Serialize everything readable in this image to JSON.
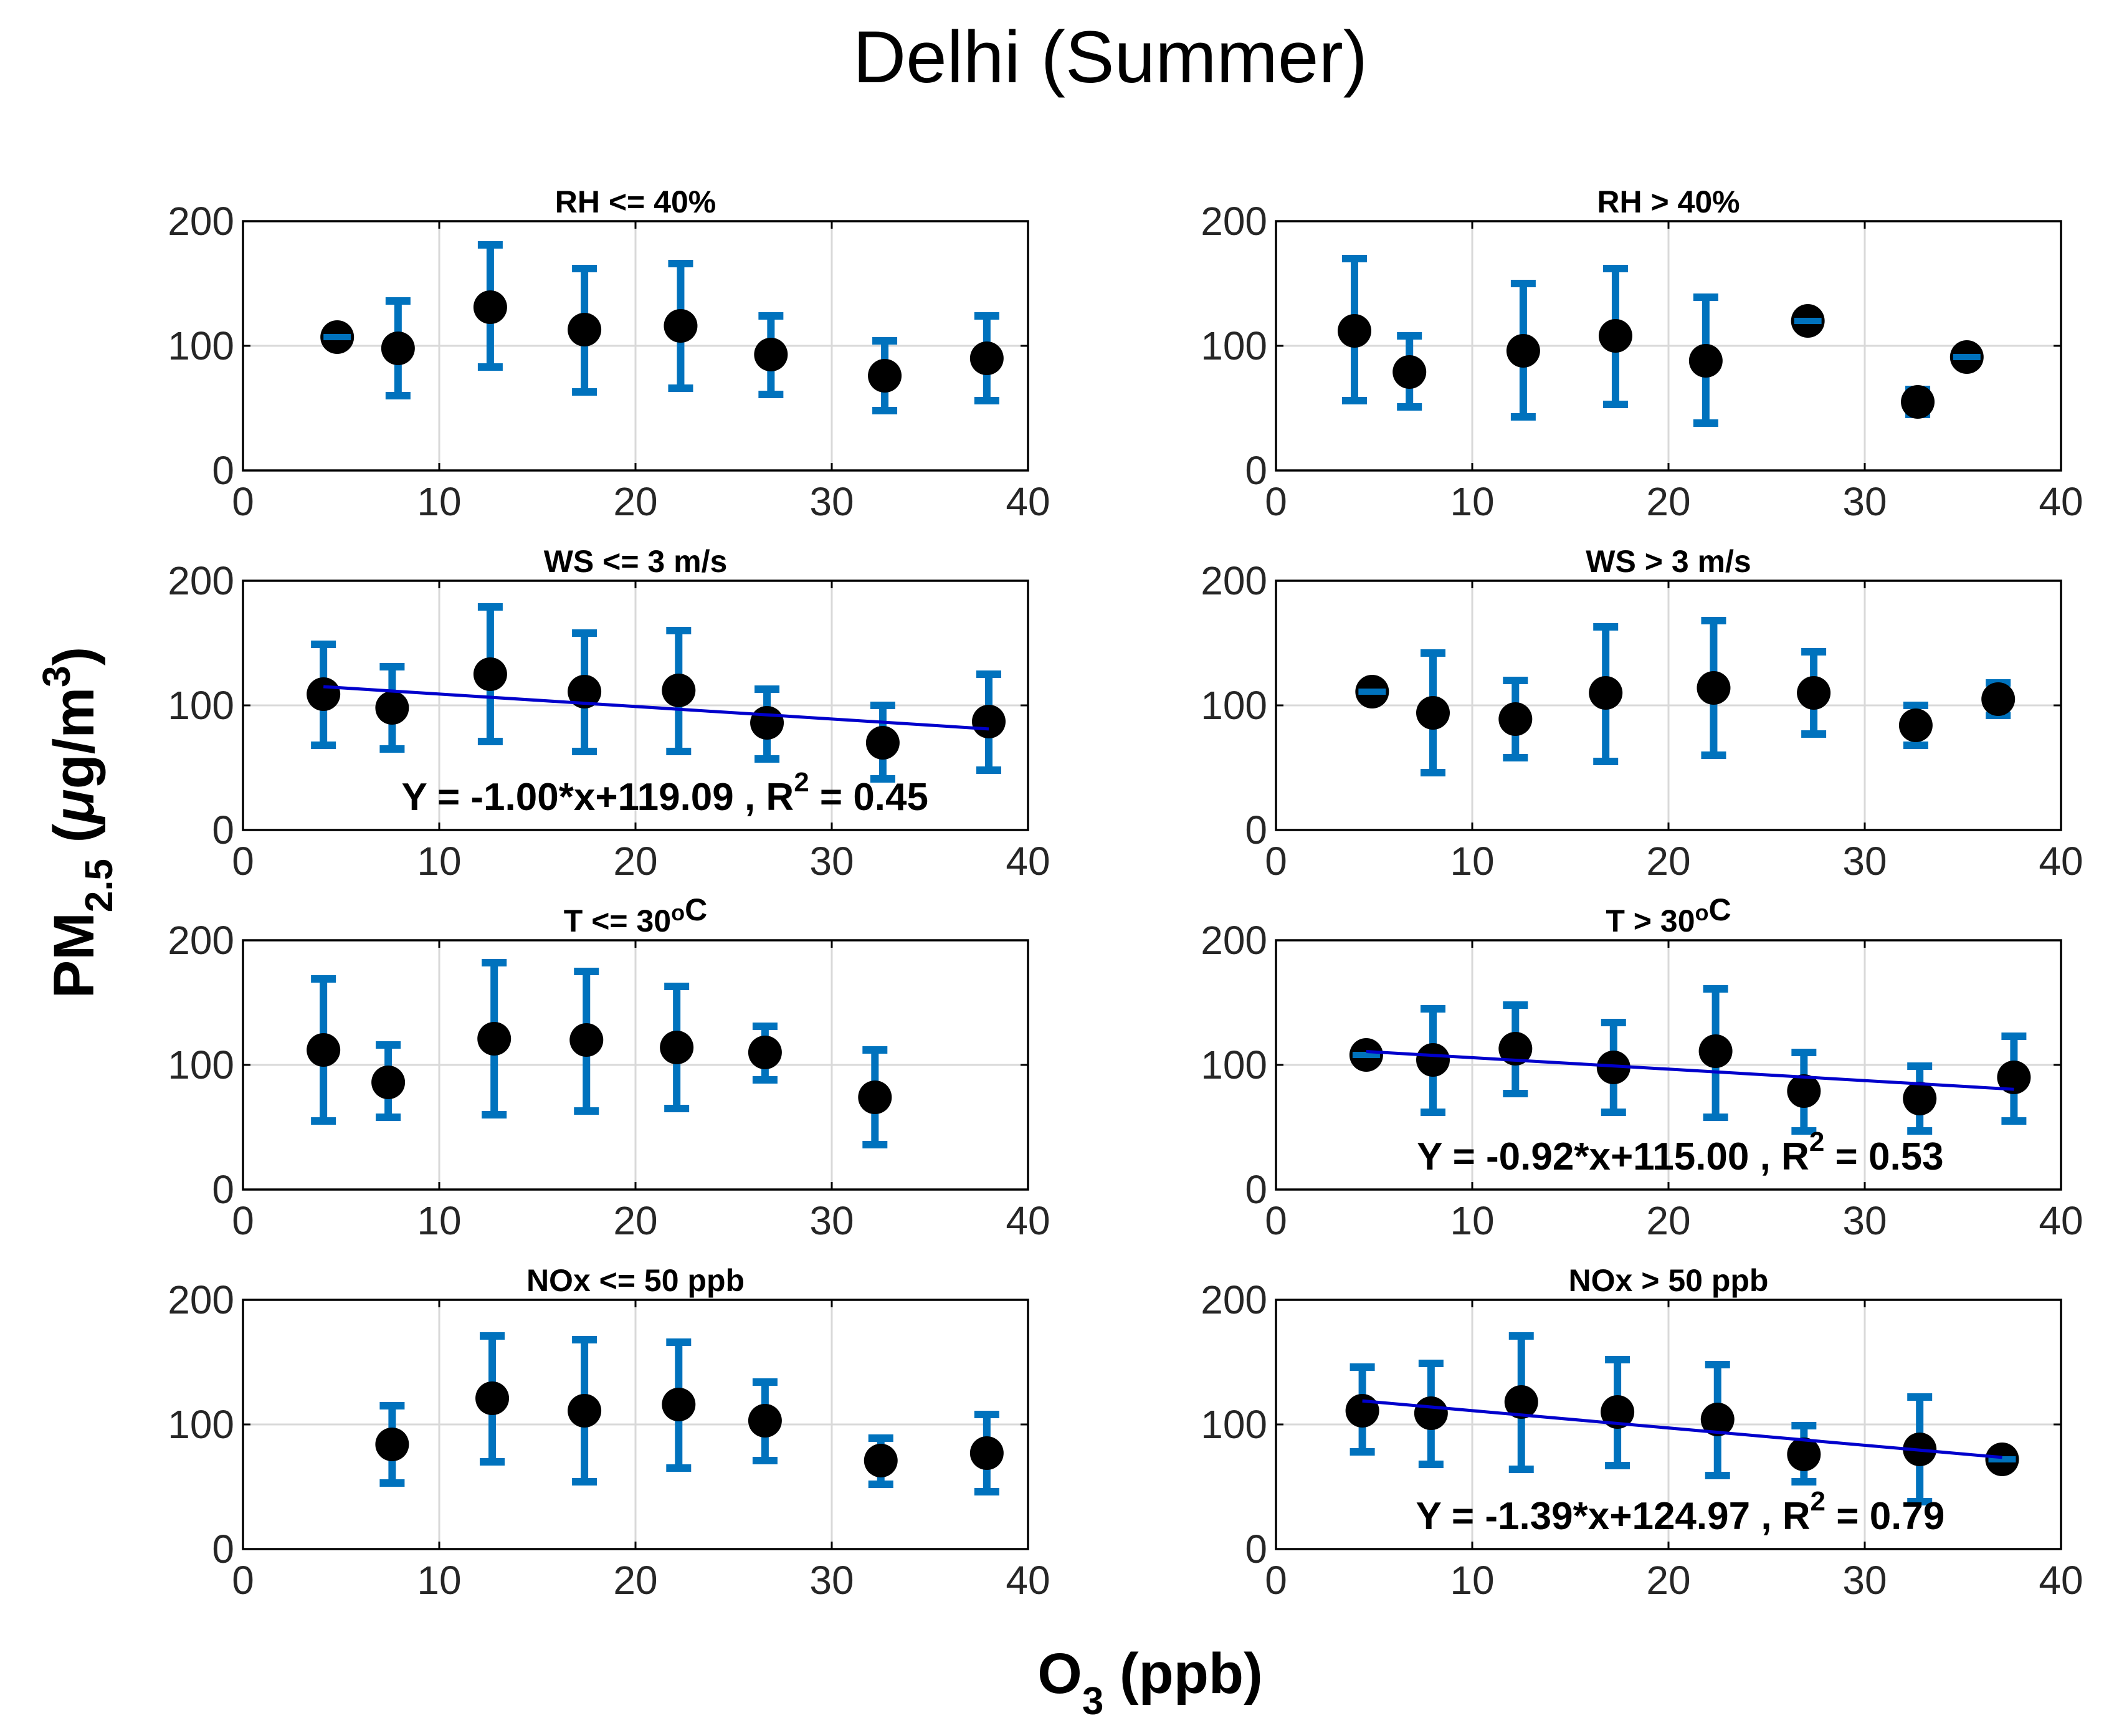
{
  "figure": {
    "title": "Delhi (Summer)",
    "xlabel": "O",
    "xlabel_sub": "3",
    "xlabel_rest": " (ppb)",
    "ylabel": "PM",
    "ylabel_sub": "2.5",
    "ylabel_mid": " (",
    "ylabel_mu": "μ",
    "ylabel_unit": "g/m",
    "ylabel_sup": "3",
    "ylabel_end": ")"
  },
  "colors": {
    "errorbar": "#0072BD",
    "marker": "#000000",
    "fit_line": "#0000CC",
    "grid": "#d9d9d9",
    "axes": "#000000"
  },
  "chart_data": [
    {
      "type": "scatter",
      "title": "RH <= 40%",
      "title_parts": [
        {
          "t": "RH <= 40%"
        }
      ],
      "xlim": [
        0,
        40
      ],
      "ylim": [
        0,
        200
      ],
      "xticks": [
        0,
        10,
        20,
        30,
        40
      ],
      "yticks": [
        0,
        100,
        200
      ],
      "grid": true,
      "points": [
        {
          "x": 4.8,
          "y": 107,
          "lo": 107,
          "hi": 107
        },
        {
          "x": 7.9,
          "y": 98,
          "lo": 60,
          "hi": 136
        },
        {
          "x": 12.6,
          "y": 131,
          "lo": 83,
          "hi": 181
        },
        {
          "x": 17.4,
          "y": 113,
          "lo": 63,
          "hi": 162
        },
        {
          "x": 22.3,
          "y": 116,
          "lo": 66,
          "hi": 166
        },
        {
          "x": 26.9,
          "y": 93,
          "lo": 61,
          "hi": 124
        },
        {
          "x": 32.7,
          "y": 76,
          "lo": 48,
          "hi": 104
        },
        {
          "x": 37.9,
          "y": 90,
          "lo": 56,
          "hi": 124
        }
      ]
    },
    {
      "type": "scatter",
      "title": "RH > 40%",
      "title_parts": [
        {
          "t": "RH > 40%"
        }
      ],
      "xlim": [
        0,
        40
      ],
      "ylim": [
        0,
        200
      ],
      "xticks": [
        0,
        10,
        20,
        30,
        40
      ],
      "yticks": [
        0,
        100,
        200
      ],
      "grid": true,
      "points": [
        {
          "x": 4.0,
          "y": 112,
          "lo": 56,
          "hi": 170
        },
        {
          "x": 6.8,
          "y": 79,
          "lo": 51,
          "hi": 108
        },
        {
          "x": 12.6,
          "y": 96,
          "lo": 43,
          "hi": 150
        },
        {
          "x": 17.3,
          "y": 108,
          "lo": 53,
          "hi": 162
        },
        {
          "x": 21.9,
          "y": 88,
          "lo": 38,
          "hi": 139
        },
        {
          "x": 27.1,
          "y": 120,
          "lo": 120,
          "hi": 120
        },
        {
          "x": 32.7,
          "y": 55,
          "lo": 45,
          "hi": 65
        },
        {
          "x": 35.2,
          "y": 91,
          "lo": 91,
          "hi": 91
        }
      ]
    },
    {
      "type": "scatter",
      "title": "WS <= 3 m/s",
      "title_parts": [
        {
          "t": "WS <= 3 m/s"
        }
      ],
      "xlim": [
        0,
        40
      ],
      "ylim": [
        0,
        200
      ],
      "xticks": [
        0,
        10,
        20,
        30,
        40
      ],
      "yticks": [
        0,
        100,
        200
      ],
      "grid": true,
      "points": [
        {
          "x": 4.1,
          "y": 109,
          "lo": 68,
          "hi": 149
        },
        {
          "x": 7.6,
          "y": 98,
          "lo": 65,
          "hi": 131
        },
        {
          "x": 12.6,
          "y": 125,
          "lo": 71,
          "hi": 179
        },
        {
          "x": 17.4,
          "y": 111,
          "lo": 63,
          "hi": 158
        },
        {
          "x": 22.2,
          "y": 112,
          "lo": 63,
          "hi": 160
        },
        {
          "x": 26.7,
          "y": 86,
          "lo": 57,
          "hi": 113
        },
        {
          "x": 32.6,
          "y": 70,
          "lo": 41,
          "hi": 100
        },
        {
          "x": 38.0,
          "y": 87,
          "lo": 48,
          "hi": 125
        }
      ],
      "fit": {
        "x0": 4.1,
        "x1": 38.0,
        "slope": -1.0,
        "intercept": 119.09
      },
      "annotation": {
        "eq": "Y = -1.00*x+119.09 , R",
        "sup": "2",
        "rest": " = 0.45",
        "x": 21.5,
        "y": 16
      }
    },
    {
      "type": "scatter",
      "title": "WS > 3 m/s",
      "title_parts": [
        {
          "t": "WS > 3 m/s"
        }
      ],
      "xlim": [
        0,
        40
      ],
      "ylim": [
        0,
        200
      ],
      "xticks": [
        0,
        10,
        20,
        30,
        40
      ],
      "yticks": [
        0,
        100,
        200
      ],
      "grid": true,
      "points": [
        {
          "x": 4.9,
          "y": 111,
          "lo": 111,
          "hi": 111
        },
        {
          "x": 8.0,
          "y": 94,
          "lo": 46,
          "hi": 142
        },
        {
          "x": 12.2,
          "y": 89,
          "lo": 58,
          "hi": 120
        },
        {
          "x": 16.8,
          "y": 110,
          "lo": 55,
          "hi": 163
        },
        {
          "x": 22.3,
          "y": 114,
          "lo": 60,
          "hi": 168
        },
        {
          "x": 27.4,
          "y": 110,
          "lo": 77,
          "hi": 143
        },
        {
          "x": 32.6,
          "y": 84,
          "lo": 68,
          "hi": 100
        },
        {
          "x": 36.8,
          "y": 105,
          "lo": 92,
          "hi": 118
        }
      ]
    },
    {
      "type": "scatter",
      "title": "T <= 30",
      "title_parts": [
        {
          "t": "T <= 30"
        },
        {
          "t": "o",
          "sup": true
        },
        {
          "t": "C"
        }
      ],
      "xlim": [
        0,
        40
      ],
      "ylim": [
        0,
        200
      ],
      "xticks": [
        0,
        10,
        20,
        30,
        40
      ],
      "yticks": [
        0,
        100,
        200
      ],
      "grid": true,
      "points": [
        {
          "x": 4.1,
          "y": 112,
          "lo": 55,
          "hi": 169
        },
        {
          "x": 7.4,
          "y": 86,
          "lo": 58,
          "hi": 116
        },
        {
          "x": 12.8,
          "y": 121,
          "lo": 60,
          "hi": 182
        },
        {
          "x": 17.5,
          "y": 120,
          "lo": 63,
          "hi": 175
        },
        {
          "x": 22.1,
          "y": 114,
          "lo": 65,
          "hi": 163
        },
        {
          "x": 26.6,
          "y": 110,
          "lo": 88,
          "hi": 131
        },
        {
          "x": 32.2,
          "y": 74,
          "lo": 36,
          "hi": 112
        }
      ]
    },
    {
      "type": "scatter",
      "title": "T > 30",
      "title_parts": [
        {
          "t": "T > 30"
        },
        {
          "t": "o",
          "sup": true
        },
        {
          "t": "C"
        }
      ],
      "xlim": [
        0,
        40
      ],
      "ylim": [
        0,
        200
      ],
      "xticks": [
        0,
        10,
        20,
        30,
        40
      ],
      "yticks": [
        0,
        100,
        200
      ],
      "grid": true,
      "points": [
        {
          "x": 4.6,
          "y": 108,
          "lo": 108,
          "hi": 108
        },
        {
          "x": 8.0,
          "y": 104,
          "lo": 62,
          "hi": 145
        },
        {
          "x": 12.2,
          "y": 113,
          "lo": 77,
          "hi": 148
        },
        {
          "x": 17.2,
          "y": 98,
          "lo": 62,
          "hi": 134
        },
        {
          "x": 22.4,
          "y": 111,
          "lo": 58,
          "hi": 161
        },
        {
          "x": 26.9,
          "y": 79,
          "lo": 47,
          "hi": 110
        },
        {
          "x": 32.8,
          "y": 73,
          "lo": 47,
          "hi": 99
        },
        {
          "x": 37.6,
          "y": 90,
          "lo": 55,
          "hi": 123
        }
      ],
      "fit": {
        "x0": 4.6,
        "x1": 37.6,
        "slope": -0.92,
        "intercept": 115.0
      },
      "annotation": {
        "eq": "Y = -0.92*x+115.00 , R",
        "sup": "2",
        "rest": " = 0.53",
        "x": 20.6,
        "y": 16
      }
    },
    {
      "type": "scatter",
      "title": "NOx <= 50 ppb",
      "title_parts": [
        {
          "t": "NOx <= 50 ppb"
        }
      ],
      "xlim": [
        0,
        40
      ],
      "ylim": [
        0,
        200
      ],
      "xticks": [
        0,
        10,
        20,
        30,
        40
      ],
      "yticks": [
        0,
        100,
        200
      ],
      "grid": true,
      "points": [
        {
          "x": 7.6,
          "y": 84,
          "lo": 53,
          "hi": 115
        },
        {
          "x": 12.7,
          "y": 121,
          "lo": 70,
          "hi": 171
        },
        {
          "x": 17.4,
          "y": 111,
          "lo": 54,
          "hi": 168
        },
        {
          "x": 22.2,
          "y": 116,
          "lo": 65,
          "hi": 166
        },
        {
          "x": 26.6,
          "y": 103,
          "lo": 71,
          "hi": 134
        },
        {
          "x": 32.5,
          "y": 71,
          "lo": 52,
          "hi": 89
        },
        {
          "x": 37.9,
          "y": 77,
          "lo": 46,
          "hi": 108
        }
      ]
    },
    {
      "type": "scatter",
      "title": "NOx > 50 ppb",
      "title_parts": [
        {
          "t": "NOx > 50 ppb"
        }
      ],
      "xlim": [
        0,
        40
      ],
      "ylim": [
        0,
        200
      ],
      "xticks": [
        0,
        10,
        20,
        30,
        40
      ],
      "yticks": [
        0,
        100,
        200
      ],
      "grid": true,
      "points": [
        {
          "x": 4.4,
          "y": 111,
          "lo": 78,
          "hi": 146
        },
        {
          "x": 7.9,
          "y": 109,
          "lo": 68,
          "hi": 149
        },
        {
          "x": 12.5,
          "y": 118,
          "lo": 64,
          "hi": 171
        },
        {
          "x": 17.4,
          "y": 110,
          "lo": 67,
          "hi": 152
        },
        {
          "x": 22.5,
          "y": 104,
          "lo": 59,
          "hi": 148
        },
        {
          "x": 26.9,
          "y": 76,
          "lo": 54,
          "hi": 99
        },
        {
          "x": 32.8,
          "y": 80,
          "lo": 38,
          "hi": 122
        },
        {
          "x": 37.0,
          "y": 72,
          "lo": 72,
          "hi": 72
        }
      ],
      "fit": {
        "x0": 4.4,
        "x1": 37.0,
        "slope": -1.39,
        "intercept": 124.97
      },
      "annotation": {
        "eq": "Y = -1.39*x+124.97 , R",
        "sup": "2",
        "rest": " = 0.79",
        "x": 20.6,
        "y": 16
      }
    }
  ]
}
